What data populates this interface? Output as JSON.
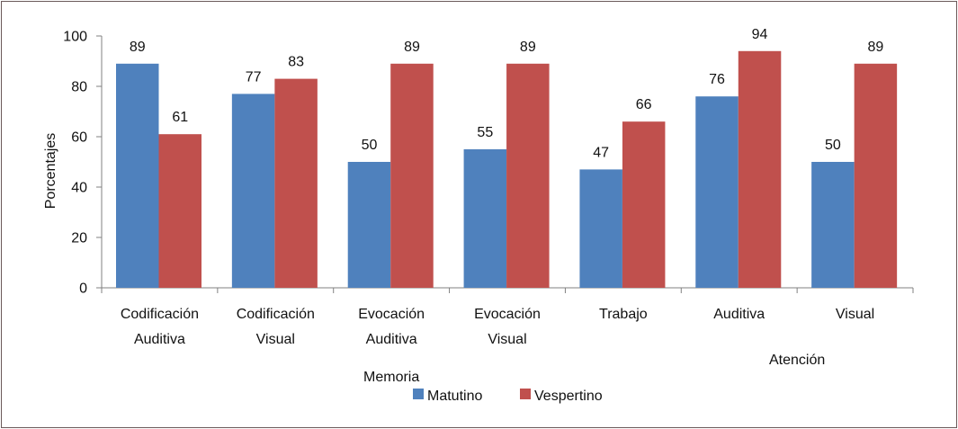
{
  "chart_data": {
    "type": "bar",
    "ylabel": "Porcentajes",
    "ylim": [
      0,
      100
    ],
    "yticks": [
      0,
      20,
      40,
      60,
      80,
      100
    ],
    "categories": [
      [
        "Codificación",
        "Auditiva"
      ],
      [
        "Codificación",
        "Visual"
      ],
      [
        "Evocación",
        "Auditiva"
      ],
      [
        "Evocación",
        "Visual"
      ],
      [
        "Trabajo"
      ],
      [
        "Auditiva"
      ],
      [
        "Visual"
      ]
    ],
    "groups": [
      {
        "label": "Memoria",
        "span": [
          0,
          4
        ]
      },
      {
        "label": "Atención",
        "span": [
          5,
          6
        ]
      }
    ],
    "series": [
      {
        "name": "Matutino",
        "color": "#4f81bd",
        "values": [
          89,
          77,
          50,
          55,
          47,
          76,
          50
        ]
      },
      {
        "name": "Vespertino",
        "color": "#c0504d",
        "values": [
          61,
          83,
          89,
          89,
          66,
          94,
          89
        ]
      }
    ],
    "legend": "bottom-center"
  }
}
